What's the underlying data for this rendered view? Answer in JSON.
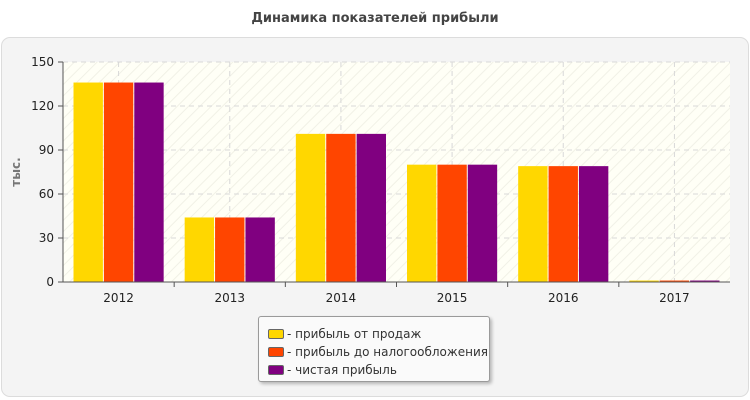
{
  "chart_data": {
    "type": "bar",
    "title": "Динамика показателей прибыли",
    "xlabel": "",
    "ylabel": "тыс.",
    "categories": [
      "2012",
      "2013",
      "2014",
      "2015",
      "2016",
      "2017"
    ],
    "series": [
      {
        "name": "- прибыль от продаж",
        "color": "#ffd700",
        "values": [
          136,
          44,
          101,
          80,
          79,
          1
        ]
      },
      {
        "name": "- прибыль до налогообложения",
        "color": "#ff4500",
        "values": [
          136,
          44,
          101,
          80,
          79,
          1
        ]
      },
      {
        "name": "- чистая прибыль",
        "color": "#800080",
        "values": [
          136,
          44,
          101,
          80,
          79,
          1
        ]
      }
    ],
    "ylim": [
      0,
      150
    ],
    "yticks": [
      "0",
      "30",
      "60",
      "90",
      "120",
      "150"
    ],
    "grid": true,
    "legend_position": "bottom-center"
  }
}
